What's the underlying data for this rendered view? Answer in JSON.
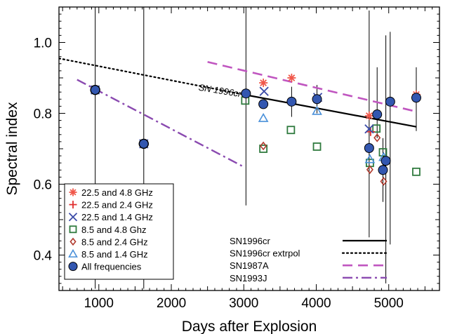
{
  "chart_data": {
    "type": "scatter",
    "xlabel": "Days after Explosion",
    "ylabel": "Spectral index",
    "xlim": [
      450,
      5700
    ],
    "ylim": [
      0.3,
      1.1
    ],
    "x_ticks": [
      1000,
      2000,
      3000,
      4000,
      5000
    ],
    "x_tick_labels": [
      "1000",
      "2000",
      "3000",
      "4000",
      "5000"
    ],
    "y_ticks": [
      0.4,
      0.6,
      0.8,
      1.0
    ],
    "y_tick_labels": [
      "0.4",
      "0.6",
      "0.8",
      "1.0"
    ],
    "grid": false,
    "legend_position": "bottom-left",
    "annotation": "SN 1996cr",
    "series": [
      {
        "name": "22.5 and 4.8 GHz",
        "marker": "asterisk",
        "color": "#f0574a",
        "points": [
          [
            3270,
            0.886
          ],
          [
            3660,
            0.9
          ],
          [
            4730,
            0.793
          ],
          [
            5380,
            0.853
          ]
        ]
      },
      {
        "name": "22.5 and 2.4 GHz",
        "marker": "plus",
        "color": "#e03030",
        "points": [
          [
            4750,
            0.748
          ]
        ]
      },
      {
        "name": "22.5 and 1.4 GHz",
        "marker": "x",
        "color": "#3b4ba8",
        "points": [
          [
            950,
            0.866
          ],
          [
            1620,
            0.714
          ],
          [
            3280,
            0.862
          ],
          [
            4020,
            0.845
          ],
          [
            4730,
            0.756
          ]
        ]
      },
      {
        "name": "8.5 and 4.8 Ghz",
        "marker": "square",
        "color": "#2f7a3e",
        "points": [
          [
            950,
            0.866
          ],
          [
            3020,
            0.836
          ],
          [
            3270,
            0.7
          ],
          [
            3650,
            0.753
          ],
          [
            4010,
            0.706
          ],
          [
            4740,
            0.66
          ],
          [
            4830,
            0.757
          ],
          [
            4920,
            0.69
          ],
          [
            5380,
            0.635
          ]
        ]
      },
      {
        "name": "8.5 and 2.4 GHz",
        "marker": "diamond",
        "color": "#b03a2e",
        "points": [
          [
            3270,
            0.708
          ],
          [
            4740,
            0.641
          ],
          [
            4840,
            0.731
          ],
          [
            4930,
            0.608
          ]
        ]
      },
      {
        "name": "8.5 and 1.4 GHz",
        "marker": "triangle",
        "color": "#4a90d9",
        "points": [
          [
            3270,
            0.786
          ],
          [
            4010,
            0.806
          ],
          [
            4740,
            0.67
          ],
          [
            4930,
            0.676
          ]
        ]
      },
      {
        "name": "All frequencies",
        "marker": "circle",
        "color": "#3357b0",
        "points": [
          [
            950,
            0.866
          ],
          [
            1620,
            0.714
          ],
          [
            3030,
            0.856
          ],
          [
            3270,
            0.826
          ],
          [
            3660,
            0.833
          ],
          [
            4010,
            0.84
          ],
          [
            4730,
            0.702
          ],
          [
            4840,
            0.797
          ],
          [
            4920,
            0.64
          ],
          [
            4960,
            0.666
          ],
          [
            5020,
            0.833
          ],
          [
            5380,
            0.844
          ]
        ]
      }
    ],
    "error_bars": [
      {
        "x": 950,
        "y_low": 0.305,
        "y_high": 1.1
      },
      {
        "x": 1620,
        "y_low": 0.305,
        "y_high": 1.1
      },
      {
        "x": 3030,
        "y_low": 0.54,
        "y_high": 1.1
      },
      {
        "x": 3660,
        "y_low": 0.79,
        "y_high": 0.875
      },
      {
        "x": 4010,
        "y_low": 0.8,
        "y_high": 0.88
      },
      {
        "x": 4730,
        "y_low": 0.45,
        "y_high": 1.09
      },
      {
        "x": 4840,
        "y_low": 0.73,
        "y_high": 0.93
      },
      {
        "x": 4920,
        "y_low": 0.55,
        "y_high": 0.73
      },
      {
        "x": 4960,
        "y_low": 0.32,
        "y_high": 1.02
      },
      {
        "x": 5020,
        "y_low": 0.43,
        "y_high": 1.03
      },
      {
        "x": 5380,
        "y_low": 0.75,
        "y_high": 0.93
      }
    ],
    "model_lines": [
      {
        "name": "SN1996cr",
        "style": "solid",
        "color": "#000000",
        "points": [
          [
            3000,
            0.853
          ],
          [
            5380,
            0.762
          ]
        ]
      },
      {
        "name": "SN1996cr extrpol",
        "style": "dotted",
        "color": "#000000",
        "points": [
          [
            450,
            0.955
          ],
          [
            3000,
            0.853
          ]
        ]
      },
      {
        "name": "SN1987A",
        "style": "dashed",
        "color": "#c056c0",
        "points": [
          [
            2500,
            0.945
          ],
          [
            5380,
            0.805
          ]
        ]
      },
      {
        "name": "SN1993J",
        "style": "dashdot",
        "color": "#8a4ab0",
        "points": [
          [
            700,
            0.895
          ],
          [
            2990,
            0.65
          ]
        ]
      }
    ]
  }
}
